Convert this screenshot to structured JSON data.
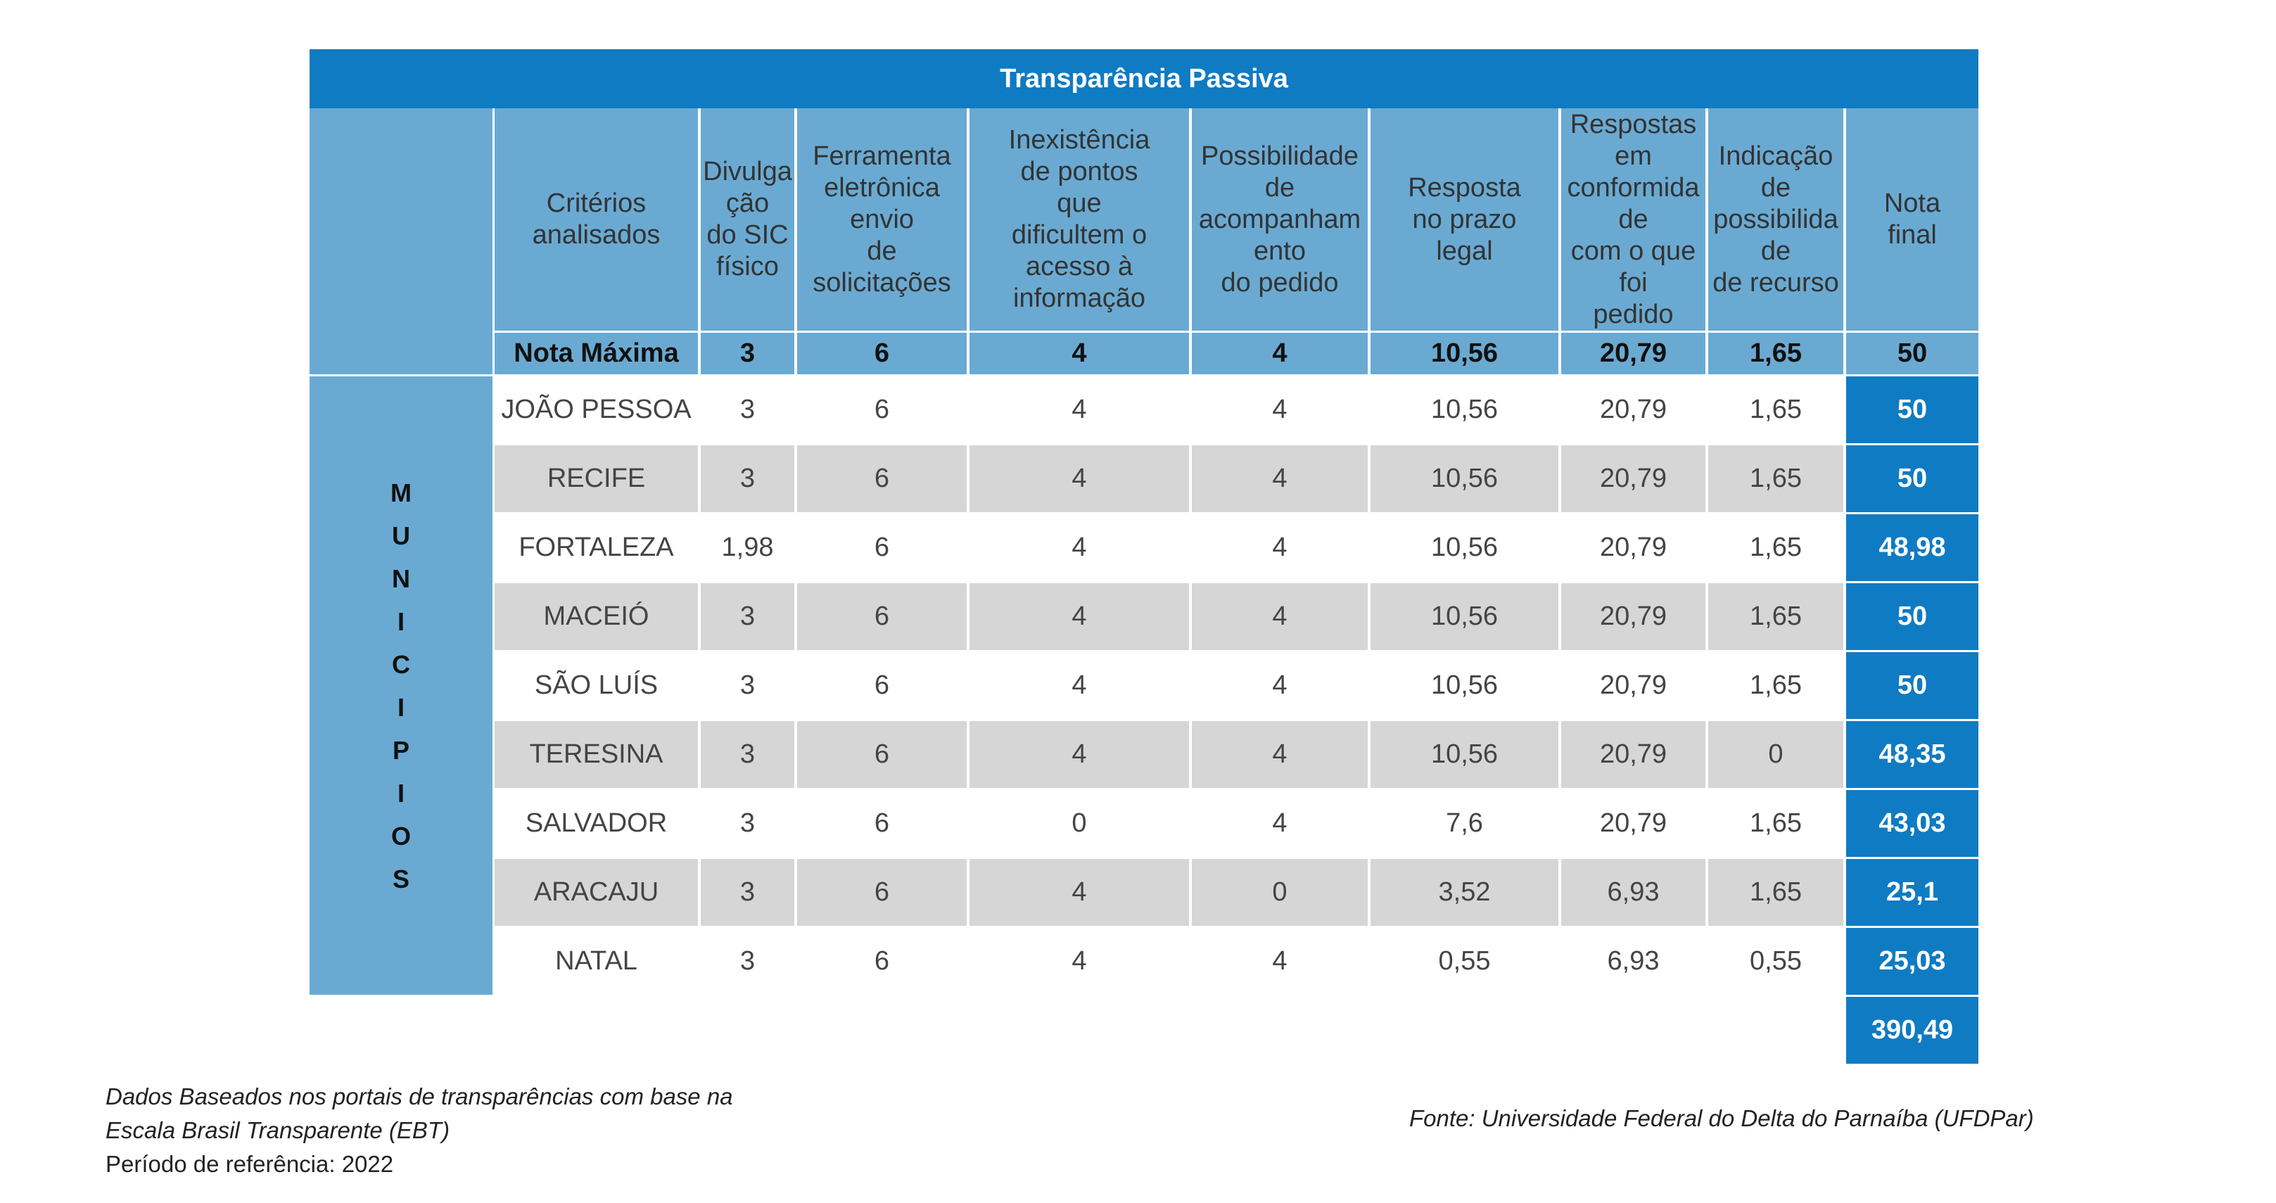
{
  "title": "Transparência Passiva",
  "side_label": [
    "M",
    "U",
    "N",
    "I",
    "C",
    "I",
    "P",
    "I",
    "O",
    "S"
  ],
  "headers": [
    "Critérios analisados",
    "Divulgação do SIC físico",
    "Ferramenta eletrônica envio de solicitações",
    "Inexistência de pontos que dificultem o acesso à informação",
    "Possibilidade de acompanhamento do pedido",
    "Resposta no prazo legal",
    "Respostas em conformidade com o que foi pedido",
    "Indicação de possibilidade de recurso",
    "Nota final"
  ],
  "header_lines": [
    [
      "Critérios",
      "analisados"
    ],
    [
      "Divulga",
      "ção",
      "do SIC",
      "físico"
    ],
    [
      "Ferramenta",
      "eletrônica",
      "envio",
      "de",
      "solicitações"
    ],
    [
      "Inexistência",
      "de pontos",
      "que",
      "dificultem o",
      "acesso à",
      "informação"
    ],
    [
      "Possibilidade",
      "de",
      "acompanham",
      "ento",
      "do pedido"
    ],
    [
      "Resposta",
      "no prazo",
      "legal"
    ],
    [
      "Respostas",
      "em",
      "conformida",
      "de",
      "com o que",
      "foi",
      "pedido"
    ],
    [
      "Indicação",
      "de",
      "possibilida",
      "de",
      "de recurso"
    ],
    [
      "Nota",
      "final"
    ]
  ],
  "nota_maxima": [
    "Nota Máxima",
    "3",
    "6",
    "4",
    "4",
    "10,56",
    "20,79",
    "1,65",
    "50"
  ],
  "rows": [
    [
      "JOÃO PESSOA",
      "3",
      "6",
      "4",
      "4",
      "10,56",
      "20,79",
      "1,65",
      "50"
    ],
    [
      "RECIFE",
      "3",
      "6",
      "4",
      "4",
      "10,56",
      "20,79",
      "1,65",
      "50"
    ],
    [
      "FORTALEZA",
      "1,98",
      "6",
      "4",
      "4",
      "10,56",
      "20,79",
      "1,65",
      "48,98"
    ],
    [
      "MACEIÓ",
      "3",
      "6",
      "4",
      "4",
      "10,56",
      "20,79",
      "1,65",
      "50"
    ],
    [
      "SÃO LUÍS",
      "3",
      "6",
      "4",
      "4",
      "10,56",
      "20,79",
      "1,65",
      "50"
    ],
    [
      "TERESINA",
      "3",
      "6",
      "4",
      "4",
      "10,56",
      "20,79",
      "0",
      "48,35"
    ],
    [
      "SALVADOR",
      "3",
      "6",
      "0",
      "4",
      "7,6",
      "20,79",
      "1,65",
      "43,03"
    ],
    [
      "ARACAJU",
      "3",
      "6",
      "4",
      "0",
      "3,52",
      "6,93",
      "1,65",
      "25,1"
    ],
    [
      "NATAL",
      "3",
      "6",
      "4",
      "4",
      "0,55",
      "6,93",
      "0,55",
      "25,03"
    ]
  ],
  "total": "390,49",
  "footnote_lines": [
    "Dados Baseados nos portais de transparências com base na",
    "Escala Brasil Transparente (EBT)",
    "Período de referência: 2022"
  ],
  "source": "Fonte: Universidade Federal do Delta do Parnaíba (UFDPar)",
  "colors": {
    "accent": "#0f7bc3",
    "header_bg": "#6aaad2",
    "gray_row": "#d6d6d6"
  },
  "chart_data": {
    "type": "table",
    "title": "Transparência Passiva",
    "columns": [
      "Critérios analisados",
      "Divulgação do SIC físico",
      "Ferramenta eletrônica envio de solicitações",
      "Inexistência de pontos que dificultem o acesso à informação",
      "Possibilidade de acompanhamento do pedido",
      "Resposta no prazo legal",
      "Respostas em conformidade com o que foi pedido",
      "Indicação de possibilidade de recurso",
      "Nota final"
    ],
    "rows": [
      [
        "Nota Máxima",
        3,
        6,
        4,
        4,
        10.56,
        20.79,
        1.65,
        50
      ],
      [
        "JOÃO PESSOA",
        3,
        6,
        4,
        4,
        10.56,
        20.79,
        1.65,
        50
      ],
      [
        "RECIFE",
        3,
        6,
        4,
        4,
        10.56,
        20.79,
        1.65,
        50
      ],
      [
        "FORTALEZA",
        1.98,
        6,
        4,
        4,
        10.56,
        20.79,
        1.65,
        48.98
      ],
      [
        "MACEIÓ",
        3,
        6,
        4,
        4,
        10.56,
        20.79,
        1.65,
        50
      ],
      [
        "SÃO LUÍS",
        3,
        6,
        4,
        4,
        10.56,
        20.79,
        1.65,
        50
      ],
      [
        "TERESINA",
        3,
        6,
        4,
        4,
        10.56,
        20.79,
        0,
        48.35
      ],
      [
        "SALVADOR",
        3,
        6,
        0,
        4,
        7.6,
        20.79,
        1.65,
        43.03
      ],
      [
        "ARACAJU",
        3,
        6,
        4,
        0,
        3.52,
        6.93,
        1.65,
        25.1
      ],
      [
        "NATAL",
        3,
        6,
        4,
        4,
        0.55,
        6.93,
        0.55,
        25.03
      ]
    ],
    "total": 390.49
  }
}
